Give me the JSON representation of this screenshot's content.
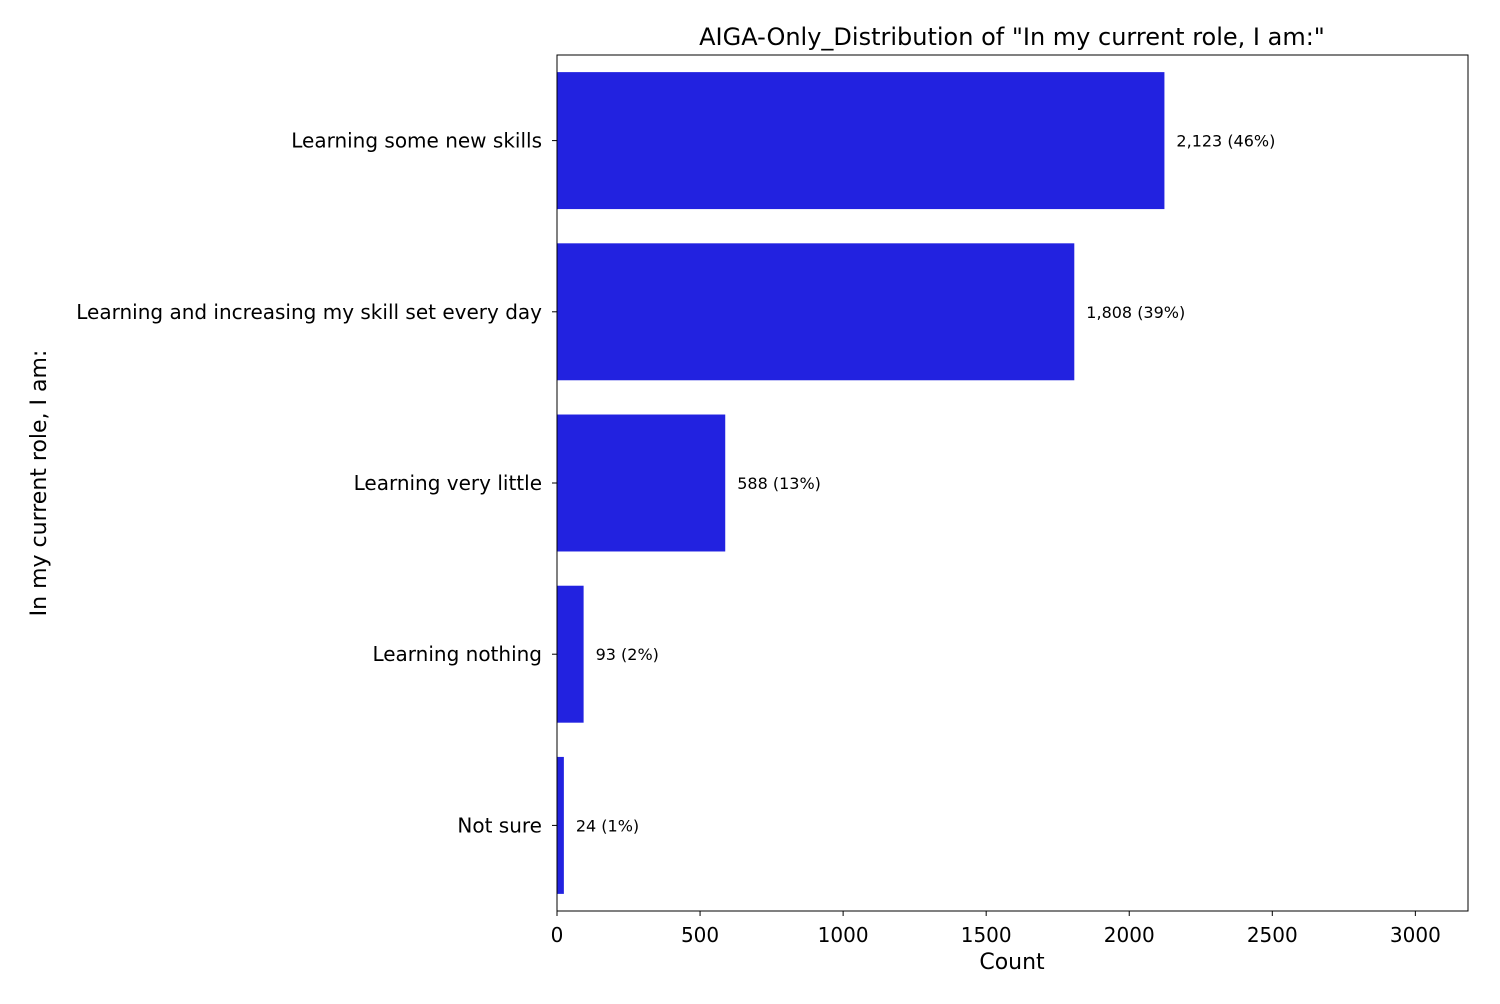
{
  "chart_data": {
    "type": "bar",
    "orientation": "horizontal",
    "title": "AIGA-Only_Distribution of \"In my current role, I am:\"",
    "xlabel": "Count",
    "ylabel": "In my current role, I am:",
    "categories": [
      "Learning some new skills",
      "Learning and increasing my skill set every day",
      "Learning very little",
      "Learning nothing",
      "Not sure"
    ],
    "values": [
      2123,
      1808,
      588,
      93,
      24
    ],
    "data_labels": [
      "2,123 (46%)",
      "1,808 (39%)",
      "588 (13%)",
      "93 (2%)",
      "24 (1%)"
    ],
    "xticks": [
      0,
      500,
      1000,
      1500,
      2000,
      2500,
      3000
    ],
    "xtick_labels": [
      "0",
      "500",
      "1000",
      "1500",
      "2000",
      "2500",
      "3000"
    ],
    "xlim": [
      0,
      3184
    ],
    "grid": false,
    "legend": "none",
    "bar_color": "#2222e0"
  }
}
